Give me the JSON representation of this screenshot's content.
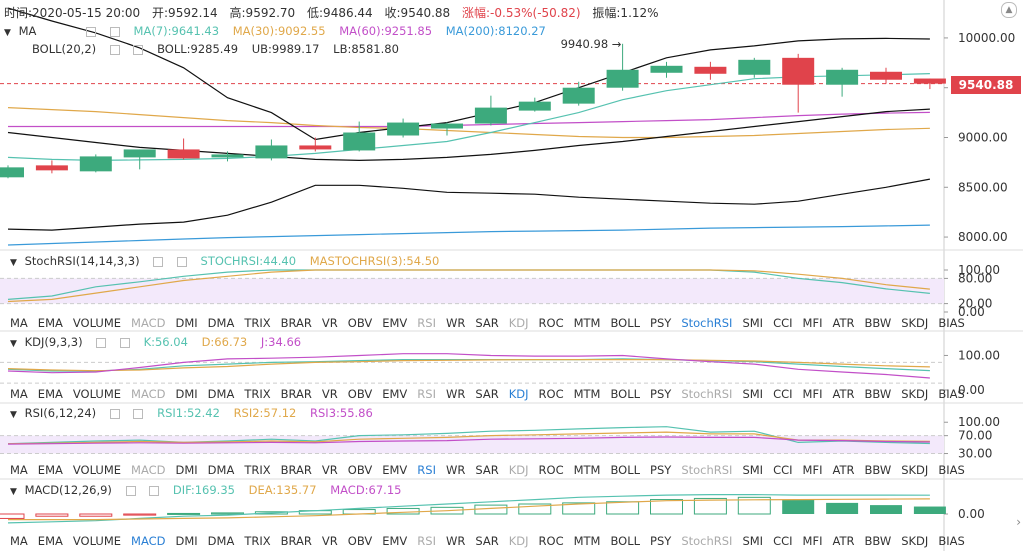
{
  "info": {
    "time": "时间:2020-05-15 20:00",
    "open": "开:9592.14",
    "high": "高:9592.70",
    "low": "低:9486.44",
    "close": "收:9540.88",
    "change": "涨幅:-0.53%(-50.82)",
    "amplitude": "振幅:1.12%"
  },
  "ma_row": {
    "name": "MA",
    "ma7": "MA(7):9641.43",
    "ma30": "MA(30):9092.55",
    "ma60": "MA(60):9251.85",
    "ma200": "MA(200):8120.27"
  },
  "boll_row": {
    "name": "BOLL(20,2)",
    "boll": "BOLL:9285.49",
    "ub": "UB:9989.17",
    "lb": "LB:8581.80"
  },
  "stoch_row": {
    "name": "StochRSI(14,14,3,3)",
    "k": "STOCHRSI:44.40",
    "d": "MASTOCHRSI(3):54.50"
  },
  "kdj_row": {
    "name": "KDJ(9,3,3)",
    "k": "K:56.04",
    "d": "D:66.73",
    "j": "J:34.66"
  },
  "rsi_row": {
    "name": "RSI(6,12,24)",
    "r1": "RSI1:52.42",
    "r2": "RSI2:57.12",
    "r3": "RSI3:55.86"
  },
  "macd_row": {
    "name": "MACD(12,26,9)",
    "dif": "DIF:169.35",
    "dea": "DEA:135.77",
    "macd": "MACD:67.15"
  },
  "tabs": [
    "MA",
    "EMA",
    "VOLUME",
    "MACD",
    "DMI",
    "DMA",
    "TRIX",
    "BRAR",
    "VR",
    "OBV",
    "EMV",
    "RSI",
    "WR",
    "SAR",
    "KDJ",
    "ROC",
    "MTM",
    "BOLL",
    "PSY",
    "StochRSI",
    "SMI",
    "CCI",
    "MFI",
    "ATR",
    "BBW",
    "SKDJ",
    "BIAS"
  ],
  "tab_state_grey": [
    [
      "MACD",
      "RSI",
      "KDJ"
    ],
    [
      "MACD",
      "RSI",
      "StochRSI"
    ],
    [
      "MACD",
      "KDJ",
      "StochRSI"
    ],
    [
      "RSI",
      "KDJ",
      "StochRSI"
    ]
  ],
  "tab_state_active": [
    "StochRSI",
    "KDJ",
    "RSI",
    "MACD"
  ],
  "current_price": "9540.88",
  "high_marker": "9940.98 →",
  "colors": {
    "up": "#3daa7d",
    "down": "#e0434b",
    "ma7": "#56c2b0",
    "ma30": "#e0a84a",
    "ma60": "#c24fc8",
    "ma200": "#3a9ad9",
    "boll": "#111111"
  },
  "chart_data": [
    {
      "type": "candlestick",
      "y_axis_ticks": [
        8000,
        8500,
        9000,
        9500,
        10000
      ],
      "ylim": [
        7870,
        10180
      ],
      "candles": [
        {
          "o": 8600,
          "h": 8720,
          "l": 8590,
          "c": 8700
        },
        {
          "o": 8720,
          "h": 8770,
          "l": 8640,
          "c": 8670
        },
        {
          "o": 8660,
          "h": 8830,
          "l": 8650,
          "c": 8810
        },
        {
          "o": 8800,
          "h": 8880,
          "l": 8680,
          "c": 8880
        },
        {
          "o": 8880,
          "h": 8990,
          "l": 8780,
          "c": 8790
        },
        {
          "o": 8800,
          "h": 8860,
          "l": 8760,
          "c": 8830
        },
        {
          "o": 8790,
          "h": 8980,
          "l": 8770,
          "c": 8920
        },
        {
          "o": 8920,
          "h": 9000,
          "l": 8860,
          "c": 8880
        },
        {
          "o": 8870,
          "h": 9160,
          "l": 8860,
          "c": 9050
        },
        {
          "o": 9020,
          "h": 9190,
          "l": 9000,
          "c": 9150
        },
        {
          "o": 9090,
          "h": 9150,
          "l": 9020,
          "c": 9140
        },
        {
          "o": 9140,
          "h": 9420,
          "l": 9120,
          "c": 9300
        },
        {
          "o": 9270,
          "h": 9400,
          "l": 9260,
          "c": 9360
        },
        {
          "o": 9340,
          "h": 9560,
          "l": 9320,
          "c": 9500
        },
        {
          "o": 9500,
          "h": 9940.98,
          "l": 9470,
          "c": 9680
        },
        {
          "o": 9650,
          "h": 9760,
          "l": 9600,
          "c": 9720
        },
        {
          "o": 9710,
          "h": 9760,
          "l": 9580,
          "c": 9640
        },
        {
          "o": 9630,
          "h": 9800,
          "l": 9600,
          "c": 9780
        },
        {
          "o": 9800,
          "h": 9840,
          "l": 9250,
          "c": 9530
        },
        {
          "o": 9530,
          "h": 9700,
          "l": 9410,
          "c": 9680
        },
        {
          "o": 9660,
          "h": 9700,
          "l": 9540,
          "c": 9580
        },
        {
          "o": 9592.14,
          "h": 9592.7,
          "l": 9486.44,
          "c": 9540.88
        }
      ],
      "ma7": [
        8800,
        8780,
        8770,
        8775,
        8780,
        8790,
        8810,
        8840,
        8880,
        8920,
        8960,
        9050,
        9150,
        9250,
        9380,
        9470,
        9530,
        9590,
        9610,
        9620,
        9630,
        9641.43
      ],
      "ma30": [
        9300,
        9280,
        9260,
        9230,
        9200,
        9170,
        9150,
        9120,
        9100,
        9090,
        9070,
        9050,
        9030,
        9010,
        9000,
        9000,
        9010,
        9020,
        9040,
        9060,
        9080,
        9092.55
      ],
      "ma60": [
        9110,
        9110,
        9110,
        9110,
        9110,
        9110,
        9110,
        9110,
        9110,
        9110,
        9120,
        9130,
        9140,
        9150,
        9160,
        9170,
        9180,
        9200,
        9220,
        9235,
        9245,
        9251.85
      ],
      "ma200": [
        7920,
        7935,
        7950,
        7965,
        7980,
        7995,
        8005,
        8015,
        8025,
        8035,
        8045,
        8055,
        8060,
        8065,
        8070,
        8080,
        8090,
        8095,
        8100,
        8105,
        8112,
        8120.27
      ],
      "boll_mid": [
        9050,
        9000,
        8950,
        8900,
        8870,
        8840,
        8810,
        8780,
        8770,
        8780,
        8800,
        8830,
        8870,
        8920,
        8960,
        9010,
        9060,
        9110,
        9160,
        9210,
        9260,
        9285.49
      ],
      "boll_ub": [
        10300,
        10170,
        10050,
        9900,
        9700,
        9400,
        9250,
        8980,
        9050,
        9100,
        9150,
        9250,
        9350,
        9500,
        9650,
        9800,
        9880,
        9920,
        9970,
        9990,
        9995,
        9989.17
      ],
      "boll_lb": [
        8080,
        8070,
        8100,
        8130,
        8150,
        8220,
        8350,
        8520,
        8520,
        8490,
        8450,
        8440,
        8430,
        8400,
        8380,
        8360,
        8340,
        8330,
        8360,
        8430,
        8500,
        8581.8
      ]
    },
    {
      "type": "line",
      "title": "StochRSI(14,14,3,3)",
      "y_axis_ticks": [
        0,
        20,
        80,
        100
      ],
      "series": [
        {
          "name": "STOCHRSI",
          "values": [
            30,
            38,
            60,
            72,
            85,
            95,
            100,
            100,
            100,
            100,
            100,
            100,
            100,
            100,
            100,
            100,
            100,
            95,
            80,
            70,
            55,
            44.4
          ]
        },
        {
          "name": "MASTOCHRSI(3)",
          "values": [
            25,
            30,
            45,
            60,
            75,
            85,
            95,
            100,
            100,
            100,
            100,
            100,
            100,
            100,
            100,
            100,
            100,
            98,
            90,
            80,
            65,
            54.5
          ]
        }
      ]
    },
    {
      "type": "line",
      "title": "KDJ(9,3,3)",
      "y_axis_ticks": [
        0,
        100
      ],
      "series": [
        {
          "name": "K",
          "values": [
            60,
            55,
            55,
            60,
            70,
            75,
            80,
            82,
            85,
            88,
            88,
            88,
            88,
            88,
            90,
            88,
            85,
            82,
            75,
            68,
            62,
            56.04
          ]
        },
        {
          "name": "D",
          "values": [
            62,
            58,
            56,
            58,
            64,
            68,
            75,
            80,
            82,
            85,
            86,
            87,
            88,
            88,
            88,
            88,
            86,
            84,
            80,
            75,
            70,
            66.73
          ]
        },
        {
          "name": "J",
          "values": [
            55,
            50,
            52,
            65,
            80,
            90,
            92,
            95,
            100,
            105,
            105,
            100,
            98,
            98,
            100,
            90,
            82,
            75,
            60,
            52,
            45,
            34.66
          ]
        }
      ]
    },
    {
      "type": "line",
      "title": "RSI(6,12,24)",
      "y_axis_ticks": [
        30,
        70,
        100
      ],
      "series": [
        {
          "name": "RSI1",
          "values": [
            52,
            55,
            58,
            60,
            55,
            58,
            62,
            58,
            70,
            72,
            75,
            80,
            82,
            85,
            88,
            90,
            78,
            80,
            55,
            58,
            55,
            52.42
          ]
        },
        {
          "name": "RSI2",
          "values": [
            52,
            53,
            55,
            57,
            55,
            56,
            58,
            56,
            62,
            64,
            66,
            70,
            72,
            74,
            76,
            78,
            74,
            74,
            60,
            60,
            58,
            57.12
          ]
        },
        {
          "name": "RSI3",
          "values": [
            51,
            52,
            53,
            54,
            53,
            54,
            55,
            54,
            57,
            58,
            59,
            62,
            63,
            64,
            66,
            67,
            66,
            66,
            60,
            59,
            57,
            55.86
          ]
        }
      ]
    },
    {
      "type": "bar",
      "title": "MACD(12,26,9)",
      "y_axis_ticks": [
        0
      ],
      "macd": [
        -40,
        -20,
        -20,
        -10,
        5,
        10,
        20,
        30,
        40,
        50,
        60,
        80,
        90,
        100,
        110,
        130,
        140,
        150,
        130,
        100,
        80,
        67.15
      ],
      "dif": [
        -80,
        -70,
        -60,
        -40,
        -20,
        -10,
        10,
        30,
        50,
        70,
        90,
        110,
        130,
        150,
        160,
        170,
        175,
        175,
        170,
        170,
        170,
        169.35
      ],
      "dea": [
        -50,
        -50,
        -50,
        -45,
        -40,
        -35,
        -25,
        -15,
        0,
        15,
        30,
        50,
        70,
        90,
        105,
        120,
        125,
        128,
        130,
        132,
        134,
        135.77
      ]
    }
  ]
}
